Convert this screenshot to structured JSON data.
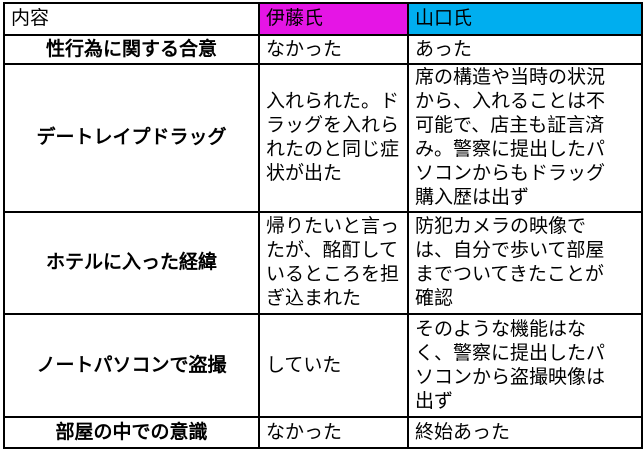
{
  "colors": {
    "ito_header_bg": "#E515E5",
    "yamaguchi_header_bg": "#00AEEF",
    "border": "#000000",
    "text": "#000000"
  },
  "table": {
    "header": {
      "content_label": "内容",
      "ito_label": "伊藤氏",
      "yamaguchi_label": "山口氏"
    },
    "rows": [
      {
        "item": "性行為に関する合意",
        "ito": "なかった",
        "yamaguchi": "あった"
      },
      {
        "item": "デートレイプドラッグ",
        "ito": "入れられた。ド\nラッグを入れら\nれたのと同じ症\n状が出た",
        "yamaguchi": "席の構造や当時の状況\nから、入れることは不\n可能で、店主も証言済\nみ。警察に提出したパ\nソコンからもドラッグ\n購入歴は出ず"
      },
      {
        "item": "ホテルに入った経緯",
        "ito": "帰りたいと言っ\nたが、酩酊して\nいるところを担\nぎ込まれた",
        "yamaguchi": "防犯カメラの映像で\nは、自分で歩いて部屋\nまでついてきたことが\n確認"
      },
      {
        "item": "ノートパソコンで盗撮",
        "ito": "していた",
        "yamaguchi": "そのような機能はな\nく、警察に提出したパ\nソコンから盗撮映像は\n出ず"
      },
      {
        "item": "部屋の中での意識",
        "ito": "なかった",
        "yamaguchi": "終始あった"
      }
    ]
  }
}
